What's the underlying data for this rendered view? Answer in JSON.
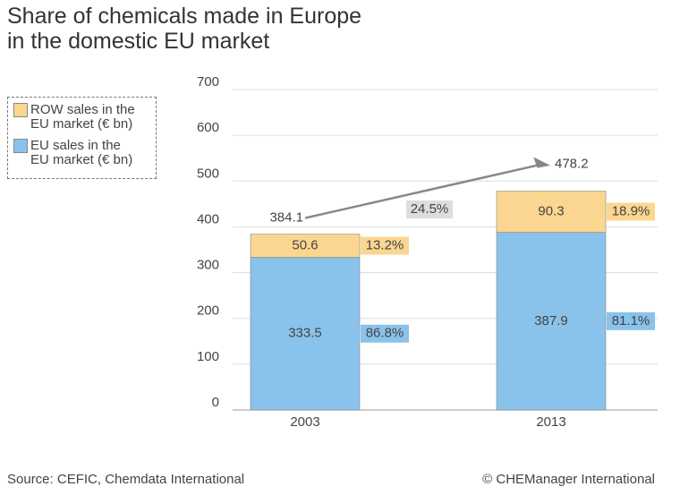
{
  "chart_data": {
    "type": "stacked_bar",
    "title": "Share of chemicals made in Europe",
    "subtitle": "in the domestic EU market",
    "categories": [
      "2003",
      "2013"
    ],
    "series": [
      {
        "name": "EU sales in the EU market (€ bn)",
        "color": "#89c2ea",
        "values": [
          333.5,
          387.9
        ],
        "shares": [
          86.8,
          81.1
        ],
        "share_labels": [
          "86.8%",
          "81.1%"
        ]
      },
      {
        "name": "ROW sales in the EU market (€ bn)",
        "color": "#fbd690",
        "values": [
          50.6,
          90.3
        ],
        "shares": [
          13.2,
          18.9
        ],
        "share_labels": [
          "13.2%",
          "18.9%"
        ]
      }
    ],
    "totals": [
      384.1,
      478.2
    ],
    "growth": 24.5,
    "growth_label": "24.5%",
    "ylim": [
      0,
      700
    ],
    "yticks": [
      0,
      100,
      200,
      300,
      400,
      500,
      600,
      700
    ],
    "grid": true,
    "source": "Source: CEFIC, Chemdata International",
    "credit": "© CHEManager International"
  }
}
